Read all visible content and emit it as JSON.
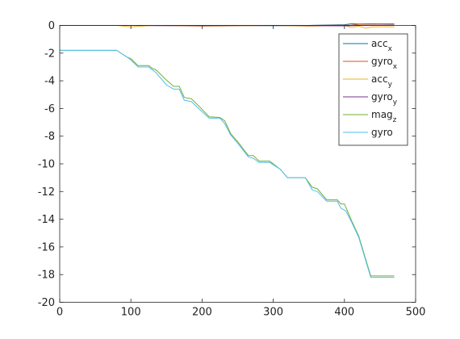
{
  "chart_data": {
    "type": "line",
    "xlim": [
      0,
      500
    ],
    "ylim": [
      -20,
      0
    ],
    "xticks": [
      0,
      100,
      200,
      300,
      400,
      500
    ],
    "yticks": [
      0,
      -2,
      -4,
      -6,
      -8,
      -10,
      -12,
      -14,
      -16,
      -18,
      -20
    ],
    "grid": false,
    "legend_position": "top-right",
    "series": [
      {
        "name": "acc",
        "subscript": "x",
        "color": "#0072BD",
        "points": [
          [
            0,
            0.0
          ],
          [
            100,
            0.0
          ],
          [
            200,
            -0.02
          ],
          [
            250,
            0.0
          ],
          [
            300,
            -0.02
          ],
          [
            350,
            0.0
          ],
          [
            400,
            0.05
          ],
          [
            410,
            0.12
          ],
          [
            420,
            0.1
          ],
          [
            440,
            0.12
          ],
          [
            460,
            0.1
          ],
          [
            470,
            0.1
          ]
        ]
      },
      {
        "name": "gyro",
        "subscript": "x",
        "color": "#D95319",
        "points": [
          [
            0,
            0.0
          ],
          [
            200,
            0.0
          ],
          [
            350,
            0.0
          ],
          [
            410,
            0.02
          ],
          [
            420,
            0.08
          ],
          [
            440,
            0.1
          ],
          [
            460,
            0.12
          ],
          [
            470,
            0.12
          ]
        ]
      },
      {
        "name": "acc",
        "subscript": "y",
        "color": "#EDB120",
        "points": [
          [
            0,
            0.0
          ],
          [
            80,
            0.0
          ],
          [
            100,
            -0.1
          ],
          [
            130,
            0.0
          ],
          [
            200,
            -0.05
          ],
          [
            300,
            0.0
          ],
          [
            350,
            -0.05
          ],
          [
            400,
            0.0
          ],
          [
            410,
            -0.15
          ],
          [
            420,
            -0.05
          ],
          [
            430,
            -0.2
          ],
          [
            440,
            -0.1
          ],
          [
            470,
            -0.1
          ]
        ]
      },
      {
        "name": "gyro",
        "subscript": "y",
        "color": "#7E2F8E",
        "points": [
          [
            0,
            0.0
          ],
          [
            100,
            0.0
          ],
          [
            200,
            -0.02
          ],
          [
            300,
            0.0
          ],
          [
            400,
            -0.03
          ],
          [
            420,
            0.0
          ],
          [
            470,
            0.02
          ]
        ]
      },
      {
        "name": "mag",
        "subscript": "z",
        "color": "#77AC30",
        "points": [
          [
            0,
            -1.8
          ],
          [
            80,
            -1.8
          ],
          [
            95,
            -2.3
          ],
          [
            100,
            -2.4
          ],
          [
            110,
            -2.9
          ],
          [
            125,
            -2.9
          ],
          [
            130,
            -3.1
          ],
          [
            135,
            -3.2
          ],
          [
            150,
            -3.95
          ],
          [
            160,
            -4.4
          ],
          [
            168,
            -4.4
          ],
          [
            175,
            -5.2
          ],
          [
            185,
            -5.3
          ],
          [
            195,
            -5.8
          ],
          [
            210,
            -6.6
          ],
          [
            225,
            -6.65
          ],
          [
            232,
            -6.9
          ],
          [
            240,
            -7.8
          ],
          [
            250,
            -8.4
          ],
          [
            265,
            -9.4
          ],
          [
            272,
            -9.4
          ],
          [
            280,
            -9.8
          ],
          [
            295,
            -9.8
          ],
          [
            310,
            -10.4
          ],
          [
            320,
            -11.0
          ],
          [
            345,
            -11.0
          ],
          [
            355,
            -11.7
          ],
          [
            362,
            -11.8
          ],
          [
            375,
            -12.6
          ],
          [
            390,
            -12.6
          ],
          [
            395,
            -12.9
          ],
          [
            400,
            -12.9
          ],
          [
            410,
            -14.1
          ],
          [
            420,
            -15.2
          ],
          [
            437,
            -18.1
          ],
          [
            470,
            -18.1
          ]
        ]
      },
      {
        "name": "gyro",
        "subscript": "",
        "color": "#4DBEEE",
        "points": [
          [
            0,
            -1.8
          ],
          [
            80,
            -1.8
          ],
          [
            95,
            -2.3
          ],
          [
            100,
            -2.5
          ],
          [
            110,
            -3.0
          ],
          [
            125,
            -3.0
          ],
          [
            135,
            -3.4
          ],
          [
            150,
            -4.3
          ],
          [
            160,
            -4.6
          ],
          [
            168,
            -4.6
          ],
          [
            175,
            -5.4
          ],
          [
            185,
            -5.5
          ],
          [
            195,
            -6.0
          ],
          [
            210,
            -6.7
          ],
          [
            225,
            -6.7
          ],
          [
            232,
            -7.1
          ],
          [
            240,
            -7.9
          ],
          [
            250,
            -8.5
          ],
          [
            265,
            -9.5
          ],
          [
            272,
            -9.6
          ],
          [
            280,
            -9.9
          ],
          [
            295,
            -9.9
          ],
          [
            310,
            -10.4
          ],
          [
            320,
            -11.0
          ],
          [
            345,
            -11.0
          ],
          [
            355,
            -11.9
          ],
          [
            362,
            -12.0
          ],
          [
            375,
            -12.7
          ],
          [
            390,
            -12.7
          ],
          [
            395,
            -13.2
          ],
          [
            402,
            -13.4
          ],
          [
            410,
            -14.2
          ],
          [
            420,
            -15.3
          ],
          [
            437,
            -18.2
          ],
          [
            470,
            -18.2
          ]
        ]
      }
    ]
  }
}
